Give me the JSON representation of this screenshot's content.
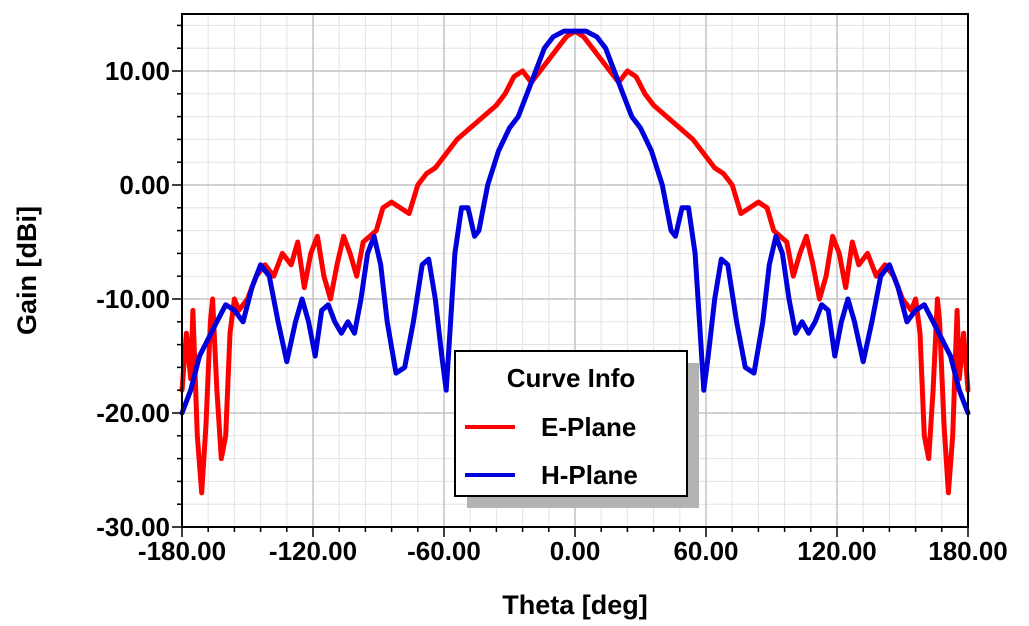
{
  "chart_data": {
    "type": "line",
    "title": "",
    "xlabel": "Theta [deg]",
    "ylabel": "Gain [dBi]",
    "xlim": [
      -180,
      180
    ],
    "ylim": [
      -30,
      15
    ],
    "x_ticks": [
      -180,
      -120,
      -60,
      0,
      60,
      120,
      180
    ],
    "x_tick_labels": [
      "-180.00",
      "-120.00",
      "-60.00",
      "0.00",
      "60.00",
      "120.00",
      "180.00"
    ],
    "y_ticks": [
      10,
      0,
      -10,
      -20,
      -30
    ],
    "y_tick_labels": [
      "10.00",
      "0.00",
      "-10.00",
      "-20.00",
      "-30.00"
    ],
    "grid": true,
    "legend": {
      "title": "Curve Info",
      "placement": "bottom-center"
    },
    "series": [
      {
        "name": "E-Plane",
        "color": "#ff0000",
        "points": [
          [
            -180,
            -18
          ],
          [
            -178,
            -13
          ],
          [
            -176,
            -17
          ],
          [
            -175,
            -11
          ],
          [
            -173,
            -22
          ],
          [
            -171,
            -27
          ],
          [
            -169,
            -21
          ],
          [
            -167,
            -12
          ],
          [
            -166,
            -10
          ],
          [
            -164,
            -18
          ],
          [
            -162,
            -24
          ],
          [
            -160,
            -22
          ],
          [
            -158,
            -13
          ],
          [
            -156,
            -10
          ],
          [
            -154,
            -11
          ],
          [
            -150,
            -10
          ],
          [
            -146,
            -8
          ],
          [
            -142,
            -7
          ],
          [
            -138,
            -8
          ],
          [
            -134,
            -6
          ],
          [
            -130,
            -7
          ],
          [
            -127,
            -5
          ],
          [
            -124,
            -9
          ],
          [
            -121,
            -6
          ],
          [
            -118,
            -4.5
          ],
          [
            -115,
            -8
          ],
          [
            -112,
            -10
          ],
          [
            -109,
            -7
          ],
          [
            -106,
            -4.5
          ],
          [
            -103,
            -6
          ],
          [
            -100,
            -8
          ],
          [
            -97,
            -5
          ],
          [
            -94,
            -4.5
          ],
          [
            -91,
            -4
          ],
          [
            -88,
            -2
          ],
          [
            -84,
            -1.5
          ],
          [
            -80,
            -2
          ],
          [
            -76,
            -2.5
          ],
          [
            -72,
            0
          ],
          [
            -68,
            1
          ],
          [
            -64,
            1.5
          ],
          [
            -60,
            2.5
          ],
          [
            -54,
            4
          ],
          [
            -48,
            5
          ],
          [
            -42,
            6
          ],
          [
            -36,
            7
          ],
          [
            -32,
            8
          ],
          [
            -28,
            9.5
          ],
          [
            -24,
            10
          ],
          [
            -20,
            9
          ],
          [
            -16,
            10
          ],
          [
            -12,
            11
          ],
          [
            -8,
            12
          ],
          [
            -4,
            13
          ],
          [
            0,
            13.5
          ],
          [
            4,
            13
          ],
          [
            8,
            12
          ],
          [
            12,
            11
          ],
          [
            16,
            10
          ],
          [
            20,
            9
          ],
          [
            24,
            10
          ],
          [
            28,
            9.5
          ],
          [
            32,
            8
          ],
          [
            36,
            7
          ],
          [
            42,
            6
          ],
          [
            48,
            5
          ],
          [
            54,
            4
          ],
          [
            60,
            2.5
          ],
          [
            64,
            1.5
          ],
          [
            68,
            1
          ],
          [
            72,
            0
          ],
          [
            76,
            -2.5
          ],
          [
            80,
            -2
          ],
          [
            84,
            -1.5
          ],
          [
            88,
            -2
          ],
          [
            91,
            -4
          ],
          [
            94,
            -4.5
          ],
          [
            97,
            -5
          ],
          [
            100,
            -8
          ],
          [
            103,
            -6
          ],
          [
            106,
            -4.5
          ],
          [
            109,
            -7
          ],
          [
            112,
            -10
          ],
          [
            115,
            -8
          ],
          [
            118,
            -4.5
          ],
          [
            121,
            -6
          ],
          [
            124,
            -9
          ],
          [
            127,
            -5
          ],
          [
            130,
            -7
          ],
          [
            134,
            -6
          ],
          [
            138,
            -8
          ],
          [
            142,
            -7
          ],
          [
            146,
            -8
          ],
          [
            150,
            -10
          ],
          [
            154,
            -11
          ],
          [
            156,
            -10
          ],
          [
            158,
            -13
          ],
          [
            160,
            -22
          ],
          [
            162,
            -24
          ],
          [
            164,
            -18
          ],
          [
            166,
            -10
          ],
          [
            167,
            -12
          ],
          [
            169,
            -21
          ],
          [
            171,
            -27
          ],
          [
            173,
            -22
          ],
          [
            175,
            -11
          ],
          [
            176,
            -17
          ],
          [
            178,
            -13
          ],
          [
            180,
            -18
          ]
        ]
      },
      {
        "name": "H-Plane",
        "color": "#0000dd",
        "points": [
          [
            -180,
            -20
          ],
          [
            -176,
            -18
          ],
          [
            -172,
            -15
          ],
          [
            -168,
            -13.5
          ],
          [
            -164,
            -12
          ],
          [
            -160,
            -10.5
          ],
          [
            -156,
            -11
          ],
          [
            -152,
            -12
          ],
          [
            -148,
            -9
          ],
          [
            -144,
            -7
          ],
          [
            -140,
            -8
          ],
          [
            -136,
            -12
          ],
          [
            -132,
            -15.5
          ],
          [
            -128,
            -12
          ],
          [
            -125,
            -10
          ],
          [
            -122,
            -12
          ],
          [
            -119,
            -15
          ],
          [
            -116,
            -11
          ],
          [
            -113,
            -10.5
          ],
          [
            -110,
            -12
          ],
          [
            -107,
            -13
          ],
          [
            -104,
            -12
          ],
          [
            -101,
            -13
          ],
          [
            -98,
            -10
          ],
          [
            -95,
            -6
          ],
          [
            -92,
            -4.5
          ],
          [
            -89,
            -7
          ],
          [
            -86,
            -12
          ],
          [
            -82,
            -16.5
          ],
          [
            -78,
            -16
          ],
          [
            -74,
            -12
          ],
          [
            -70,
            -7
          ],
          [
            -67,
            -6.5
          ],
          [
            -64,
            -10
          ],
          [
            -61,
            -15
          ],
          [
            -59,
            -18
          ],
          [
            -57,
            -12
          ],
          [
            -55,
            -6
          ],
          [
            -52,
            -2
          ],
          [
            -49,
            -2
          ],
          [
            -46,
            -4.5
          ],
          [
            -44,
            -4
          ],
          [
            -40,
            0
          ],
          [
            -35,
            3
          ],
          [
            -30,
            5
          ],
          [
            -26,
            6
          ],
          [
            -22,
            8
          ],
          [
            -18,
            10
          ],
          [
            -14,
            12
          ],
          [
            -10,
            13
          ],
          [
            -5,
            13.5
          ],
          [
            0,
            13.5
          ],
          [
            5,
            13.5
          ],
          [
            10,
            13
          ],
          [
            14,
            12
          ],
          [
            18,
            10
          ],
          [
            22,
            8
          ],
          [
            26,
            6
          ],
          [
            30,
            5
          ],
          [
            35,
            3
          ],
          [
            40,
            0
          ],
          [
            44,
            -4
          ],
          [
            46,
            -4.5
          ],
          [
            49,
            -2
          ],
          [
            52,
            -2
          ],
          [
            55,
            -6
          ],
          [
            57,
            -12
          ],
          [
            59,
            -18
          ],
          [
            61,
            -15
          ],
          [
            64,
            -10
          ],
          [
            67,
            -6.5
          ],
          [
            70,
            -7
          ],
          [
            74,
            -12
          ],
          [
            78,
            -16
          ],
          [
            82,
            -16.5
          ],
          [
            86,
            -12
          ],
          [
            89,
            -7
          ],
          [
            92,
            -4.5
          ],
          [
            95,
            -6
          ],
          [
            98,
            -10
          ],
          [
            101,
            -13
          ],
          [
            104,
            -12
          ],
          [
            107,
            -13
          ],
          [
            110,
            -12
          ],
          [
            113,
            -10.5
          ],
          [
            116,
            -11
          ],
          [
            119,
            -15
          ],
          [
            122,
            -12
          ],
          [
            125,
            -10
          ],
          [
            128,
            -12
          ],
          [
            132,
            -15.5
          ],
          [
            136,
            -12
          ],
          [
            140,
            -8
          ],
          [
            144,
            -7
          ],
          [
            148,
            -9
          ],
          [
            152,
            -12
          ],
          [
            156,
            -11
          ],
          [
            160,
            -10.5
          ],
          [
            164,
            -12
          ],
          [
            168,
            -13.5
          ],
          [
            172,
            -15
          ],
          [
            176,
            -18
          ],
          [
            180,
            -20
          ]
        ]
      }
    ]
  }
}
